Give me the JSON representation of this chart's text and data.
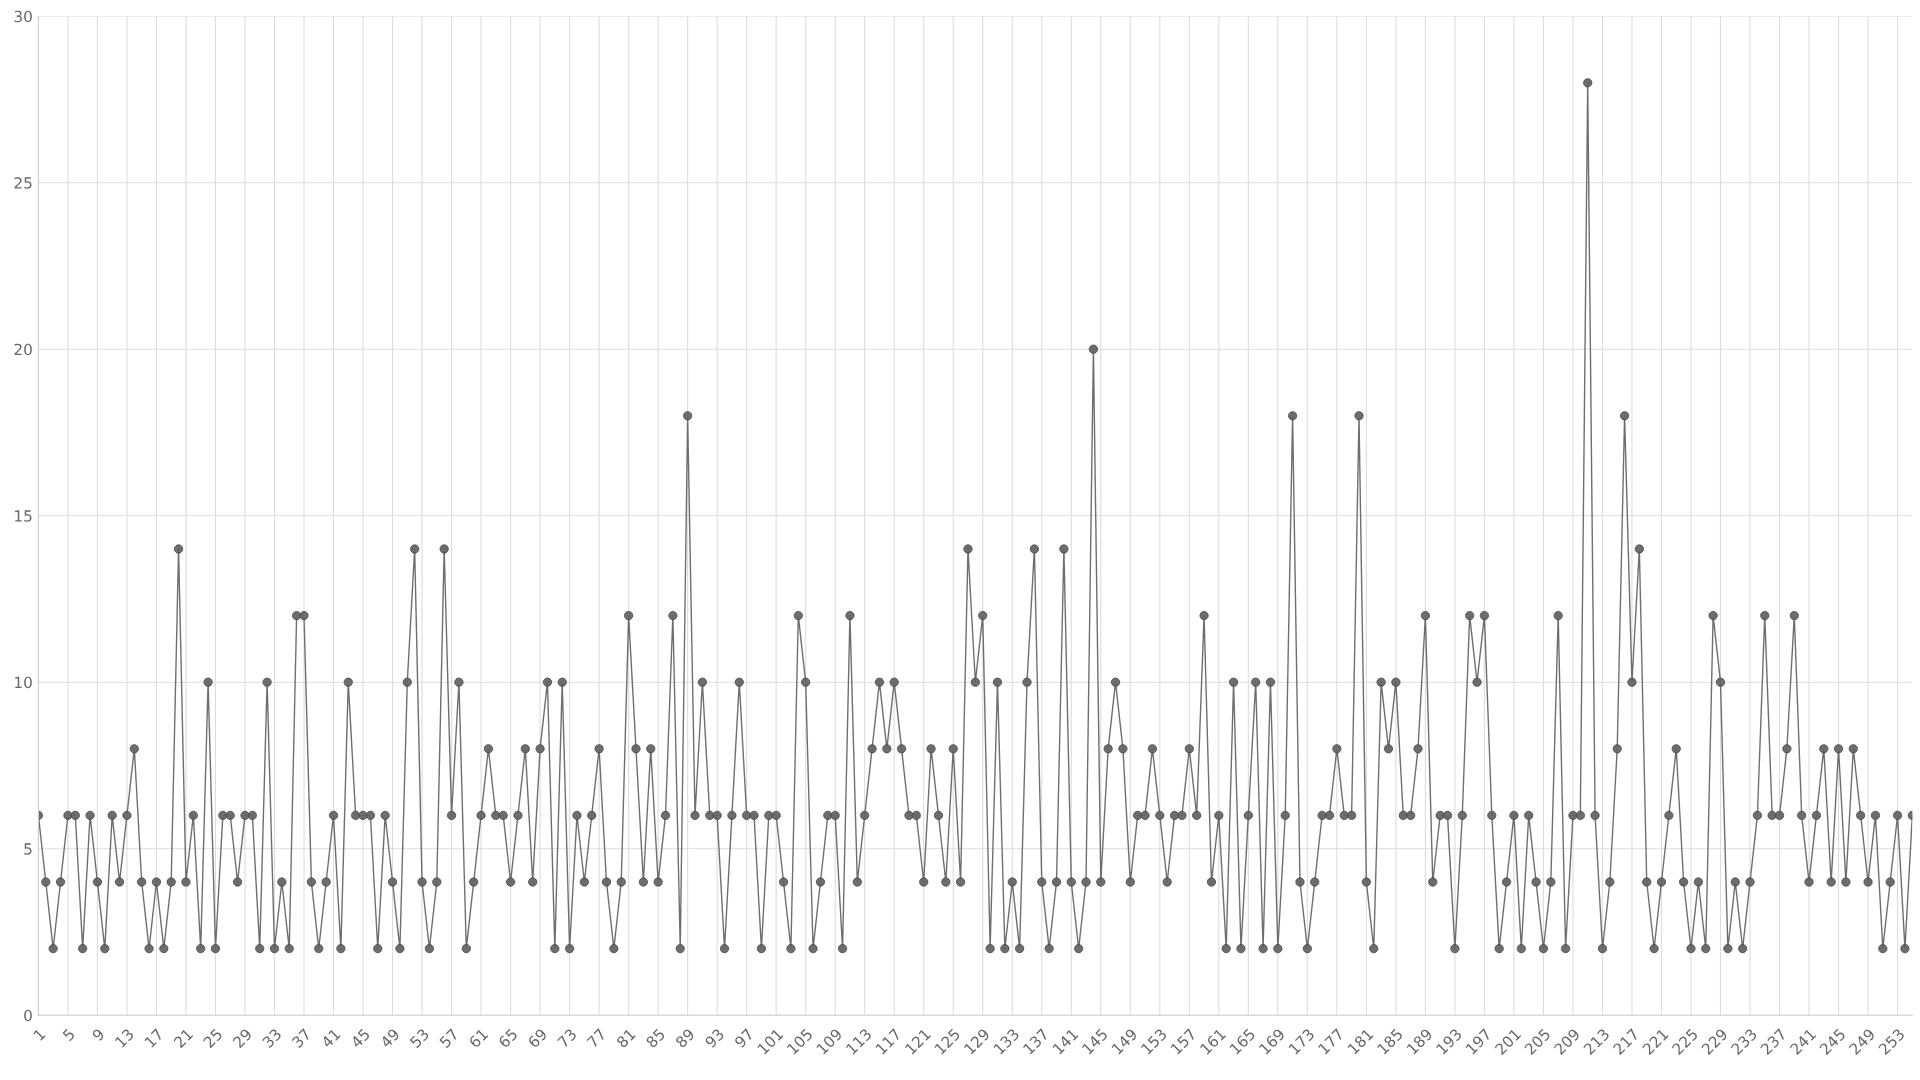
{
  "chart_data": {
    "type": "line",
    "categories": [
      "1",
      null,
      null,
      null,
      "5",
      null,
      null,
      null,
      "9",
      null,
      null,
      null,
      "13",
      null,
      null,
      null,
      "17",
      null,
      null,
      null,
      "21",
      null,
      null,
      null,
      "25",
      null,
      null,
      null,
      "29",
      null,
      null,
      null,
      "33",
      null,
      null,
      null,
      "37",
      null,
      null,
      null,
      "41",
      null,
      null,
      null,
      "45",
      null,
      null,
      null,
      "49",
      null,
      null,
      null,
      "53",
      null,
      null,
      null,
      "57",
      null,
      null,
      null,
      "61",
      null,
      null,
      null,
      "65",
      null,
      null,
      null,
      "69",
      null,
      null,
      null,
      "73",
      null,
      null,
      null,
      "77",
      null,
      null,
      null,
      "81",
      null,
      null,
      null,
      "85",
      null,
      null,
      null,
      "89",
      null,
      null,
      null,
      "93",
      null,
      null,
      null,
      "97",
      null,
      null,
      null,
      "101",
      null,
      null,
      null,
      "105",
      null,
      null,
      null,
      "109",
      null,
      null,
      null,
      "113",
      null,
      null,
      null,
      "117",
      null,
      null,
      null,
      "121",
      null,
      null,
      null,
      "125",
      null,
      null,
      null,
      "129",
      null,
      null,
      null,
      "133",
      null,
      null,
      null,
      "137",
      null,
      null,
      null,
      "141",
      null,
      null,
      null,
      "145",
      null,
      null,
      null,
      "149",
      null,
      null,
      null,
      "153",
      null,
      null,
      null,
      "157",
      null,
      null,
      null,
      "161",
      null,
      null,
      null,
      "165",
      null,
      null,
      null,
      "169",
      null,
      null,
      null,
      "173",
      null,
      null,
      null,
      "177",
      null,
      null,
      null,
      "181",
      null,
      null,
      null,
      "185",
      null,
      null,
      null,
      "189",
      null,
      null,
      null,
      "193",
      null,
      null,
      null,
      "197",
      null,
      null,
      null,
      "201",
      null,
      null,
      null,
      "205",
      null,
      null,
      null,
      "209",
      null,
      null,
      null,
      "213",
      null,
      null,
      null,
      "217",
      null,
      null,
      null,
      "221",
      null,
      null,
      null,
      "225",
      null,
      null,
      null,
      "229",
      null,
      null,
      null,
      "233",
      null,
      null,
      null,
      "237",
      null,
      null,
      null,
      "241",
      null,
      null,
      null,
      "245",
      null,
      null,
      null,
      "249",
      null,
      null,
      null,
      "253",
      null,
      null
    ],
    "series": [
      {
        "color": "#666666",
        "values": [
          6,
          4,
          2,
          4,
          6,
          6,
          2,
          6,
          4,
          2,
          6,
          4,
          6,
          8,
          4,
          2,
          4,
          2,
          4,
          14,
          4,
          6,
          2,
          10,
          2,
          6,
          6,
          4,
          6,
          6,
          2,
          10,
          2,
          4,
          2,
          12,
          12,
          4,
          2,
          4,
          6,
          2,
          10,
          6,
          6,
          6,
          2,
          6,
          4,
          2,
          10,
          14,
          4,
          2,
          4,
          14,
          6,
          10,
          2,
          4,
          6,
          8,
          6,
          6,
          4,
          6,
          8,
          4,
          8,
          10,
          2,
          10,
          2,
          6,
          4,
          6,
          8,
          4,
          2,
          4,
          12,
          8,
          4,
          8,
          4,
          6,
          12,
          2,
          18,
          6,
          10,
          6,
          6,
          2,
          6,
          10,
          6,
          6,
          2,
          6,
          6,
          4,
          2,
          12,
          10,
          2,
          4,
          6,
          6,
          2,
          12,
          4,
          6,
          8,
          10,
          8,
          10,
          8,
          6,
          6,
          4,
          8,
          6,
          4,
          8,
          4,
          14,
          10,
          12,
          2,
          10,
          2,
          4,
          2,
          10,
          14,
          4,
          2,
          4,
          14,
          4,
          2,
          4,
          20,
          4,
          8,
          10,
          8,
          4,
          6,
          6,
          8,
          6,
          4,
          6,
          6,
          8,
          6,
          12,
          4,
          6,
          2,
          10,
          2,
          6,
          10,
          2,
          10,
          2,
          6,
          18,
          4,
          2,
          4,
          6,
          6,
          8,
          6,
          6,
          18,
          4,
          2,
          10,
          8,
          10,
          6,
          6,
          8,
          12,
          4,
          6,
          6,
          2,
          6,
          12,
          10,
          12,
          6,
          2,
          4,
          6,
          2,
          6,
          4,
          2,
          4,
          12,
          2,
          6,
          6,
          28,
          6,
          2,
          4,
          8,
          18,
          10,
          14,
          4,
          2,
          4,
          6,
          8,
          4,
          2,
          4,
          2,
          12,
          10,
          2,
          4,
          2,
          4,
          6,
          12,
          6,
          6,
          8,
          12,
          6,
          4,
          6,
          8,
          4,
          8,
          4,
          8,
          6,
          4,
          6,
          2,
          4,
          6,
          2,
          6
        ]
      }
    ],
    "ylim": [
      0,
      30
    ],
    "yticks": [
      0,
      5,
      10,
      15,
      20,
      25,
      30
    ],
    "grid": true,
    "marker": "circle",
    "line_style": "solid",
    "legend": false
  }
}
